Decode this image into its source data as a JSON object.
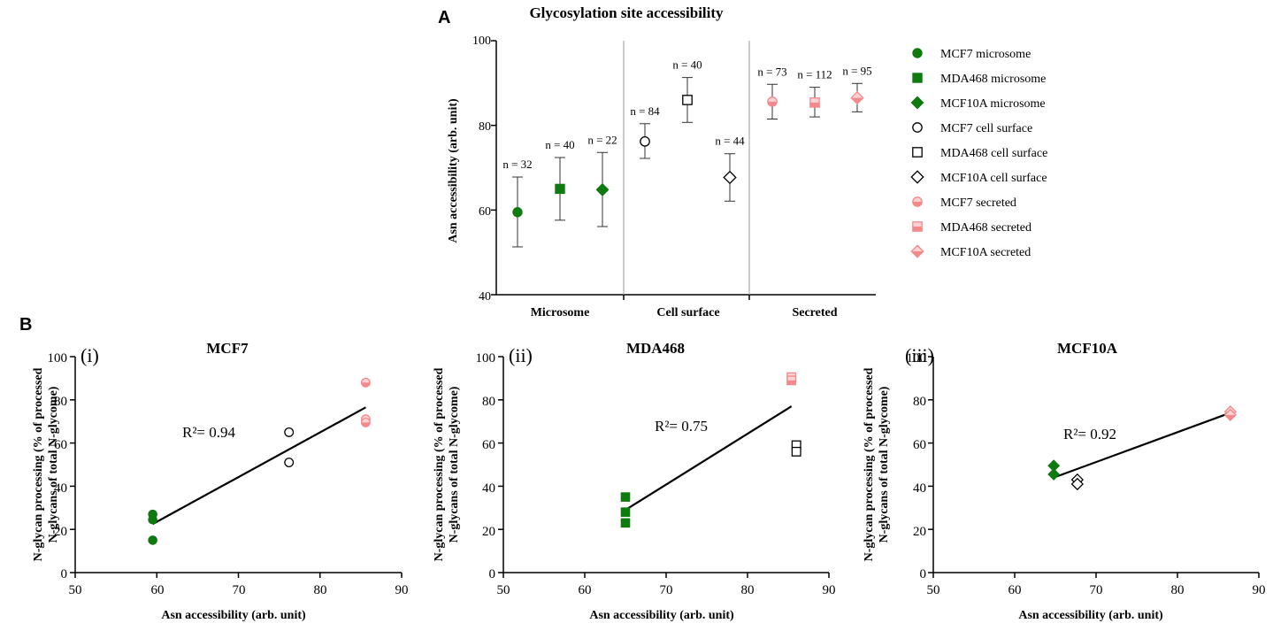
{
  "colors": {
    "green": "#0f7a0f",
    "pink": "#f4898c",
    "pink_light": "#fbd2d3",
    "black": "#000000",
    "separator": "#9a9a9a"
  },
  "panel_a": {
    "letter": "A",
    "chart_data": {
      "type": "scatter",
      "title": "Glycosylation site accessibility",
      "ylabel": "Asn accessibility (arb. unit)",
      "ylim": [
        40,
        100
      ],
      "yticks": [
        "40",
        "60",
        "80",
        "100"
      ],
      "categories": [
        "Microsome",
        "Cell surface",
        "Secreted"
      ],
      "series": [
        {
          "name": "MCF7 microsome",
          "marker": "circle",
          "fill": "green",
          "group": 0,
          "slot": 0,
          "mean": 59.5,
          "lo": 51.3,
          "hi": 67.8,
          "n": "n = 32"
        },
        {
          "name": "MDA468 microsome",
          "marker": "square",
          "fill": "green",
          "group": 0,
          "slot": 1,
          "mean": 65.0,
          "lo": 57.6,
          "hi": 72.4,
          "n": "n = 40"
        },
        {
          "name": "MCF10A microsome",
          "marker": "diamond",
          "fill": "green",
          "group": 0,
          "slot": 2,
          "mean": 64.8,
          "lo": 56.1,
          "hi": 73.6,
          "n": "n = 22"
        },
        {
          "name": "MCF7 cell surface",
          "marker": "circle",
          "fill": "open",
          "group": 1,
          "slot": 0,
          "mean": 76.2,
          "lo": 72.2,
          "hi": 80.4,
          "n": "n = 84"
        },
        {
          "name": "MDA468 cell surface",
          "marker": "square",
          "fill": "open",
          "group": 1,
          "slot": 1,
          "mean": 86.0,
          "lo": 80.7,
          "hi": 91.3,
          "n": "n = 40"
        },
        {
          "name": "MCF10A cell surface",
          "marker": "diamond",
          "fill": "open",
          "group": 1,
          "slot": 2,
          "mean": 67.7,
          "lo": 62.1,
          "hi": 73.3,
          "n": "n = 44"
        },
        {
          "name": "MCF7 secreted",
          "marker": "circle",
          "fill": "half",
          "group": 2,
          "slot": 0,
          "mean": 85.6,
          "lo": 81.5,
          "hi": 89.7,
          "n": "n = 73"
        },
        {
          "name": "MDA468 secreted",
          "marker": "square",
          "fill": "half",
          "group": 2,
          "slot": 1,
          "mean": 85.4,
          "lo": 82.0,
          "hi": 89.0,
          "n": "n = 112"
        },
        {
          "name": "MCF10A secreted",
          "marker": "diamond",
          "fill": "half",
          "group": 2,
          "slot": 2,
          "mean": 86.5,
          "lo": 83.2,
          "hi": 89.9,
          "n": "n = 95"
        }
      ]
    }
  },
  "panel_b": {
    "letter": "B",
    "ylabel_line1": "N-glycan processing (% of processed",
    "ylabel_line2": "N-glycans of total N-glycome)",
    "xlabel": "Asn accessibility (arb. unit)",
    "chart_data": [
      {
        "type": "scatter",
        "sublabel": "(i)",
        "title": "MCF7",
        "r2_text": "R²= 0.94",
        "xlim": [
          50,
          90
        ],
        "ylim": [
          0,
          100
        ],
        "xticks": [
          "50",
          "60",
          "70",
          "80",
          "90"
        ],
        "yticks": [
          "0",
          "20",
          "40",
          "60",
          "80",
          "100"
        ],
        "marker": "circle",
        "fit": {
          "x": [
            59.5,
            85.6
          ],
          "y": [
            22.5,
            76.5
          ]
        },
        "points": [
          {
            "x": 59.5,
            "y": 27,
            "fill": "green"
          },
          {
            "x": 59.5,
            "y": 24.5,
            "fill": "green"
          },
          {
            "x": 59.5,
            "y": 15,
            "fill": "green"
          },
          {
            "x": 76.2,
            "y": 65,
            "fill": "open"
          },
          {
            "x": 76.2,
            "y": 51,
            "fill": "open"
          },
          {
            "x": 85.6,
            "y": 88,
            "fill": "half"
          },
          {
            "x": 85.6,
            "y": 71,
            "fill": "half"
          },
          {
            "x": 85.6,
            "y": 69.5,
            "fill": "half"
          }
        ]
      },
      {
        "type": "scatter",
        "sublabel": "(ii)",
        "title": "MDA468",
        "r2_text": "R²= 0.75",
        "xlim": [
          50,
          90
        ],
        "ylim": [
          0,
          100
        ],
        "xticks": [
          "50",
          "60",
          "70",
          "80",
          "90"
        ],
        "yticks": [
          "0",
          "20",
          "40",
          "60",
          "80",
          "100"
        ],
        "marker": "square",
        "fit": {
          "x": [
            65.0,
            85.4
          ],
          "y": [
            29,
            77
          ]
        },
        "points": [
          {
            "x": 65.0,
            "y": 35,
            "fill": "green"
          },
          {
            "x": 65.0,
            "y": 28,
            "fill": "green"
          },
          {
            "x": 65.0,
            "y": 23,
            "fill": "green"
          },
          {
            "x": 86.0,
            "y": 59,
            "fill": "open"
          },
          {
            "x": 86.0,
            "y": 56,
            "fill": "open"
          },
          {
            "x": 85.4,
            "y": 90.5,
            "fill": "half"
          },
          {
            "x": 85.4,
            "y": 89,
            "fill": "half"
          }
        ]
      },
      {
        "type": "scatter",
        "sublabel": "(iii)",
        "title": "MCF10A",
        "r2_text": "R²= 0.92",
        "xlim": [
          50,
          90
        ],
        "ylim": [
          0,
          100
        ],
        "xticks": [
          "50",
          "60",
          "70",
          "80",
          "90"
        ],
        "yticks": [
          "0",
          "20",
          "40",
          "60",
          "80",
          "100"
        ],
        "marker": "diamond",
        "fit": {
          "x": [
            64.8,
            86.5
          ],
          "y": [
            44,
            74
          ]
        },
        "points": [
          {
            "x": 64.8,
            "y": 49.5,
            "fill": "green"
          },
          {
            "x": 64.8,
            "y": 45.5,
            "fill": "green"
          },
          {
            "x": 67.7,
            "y": 43,
            "fill": "open"
          },
          {
            "x": 67.7,
            "y": 41,
            "fill": "open"
          },
          {
            "x": 86.5,
            "y": 74.5,
            "fill": "half"
          },
          {
            "x": 86.5,
            "y": 73,
            "fill": "half"
          }
        ]
      }
    ]
  }
}
